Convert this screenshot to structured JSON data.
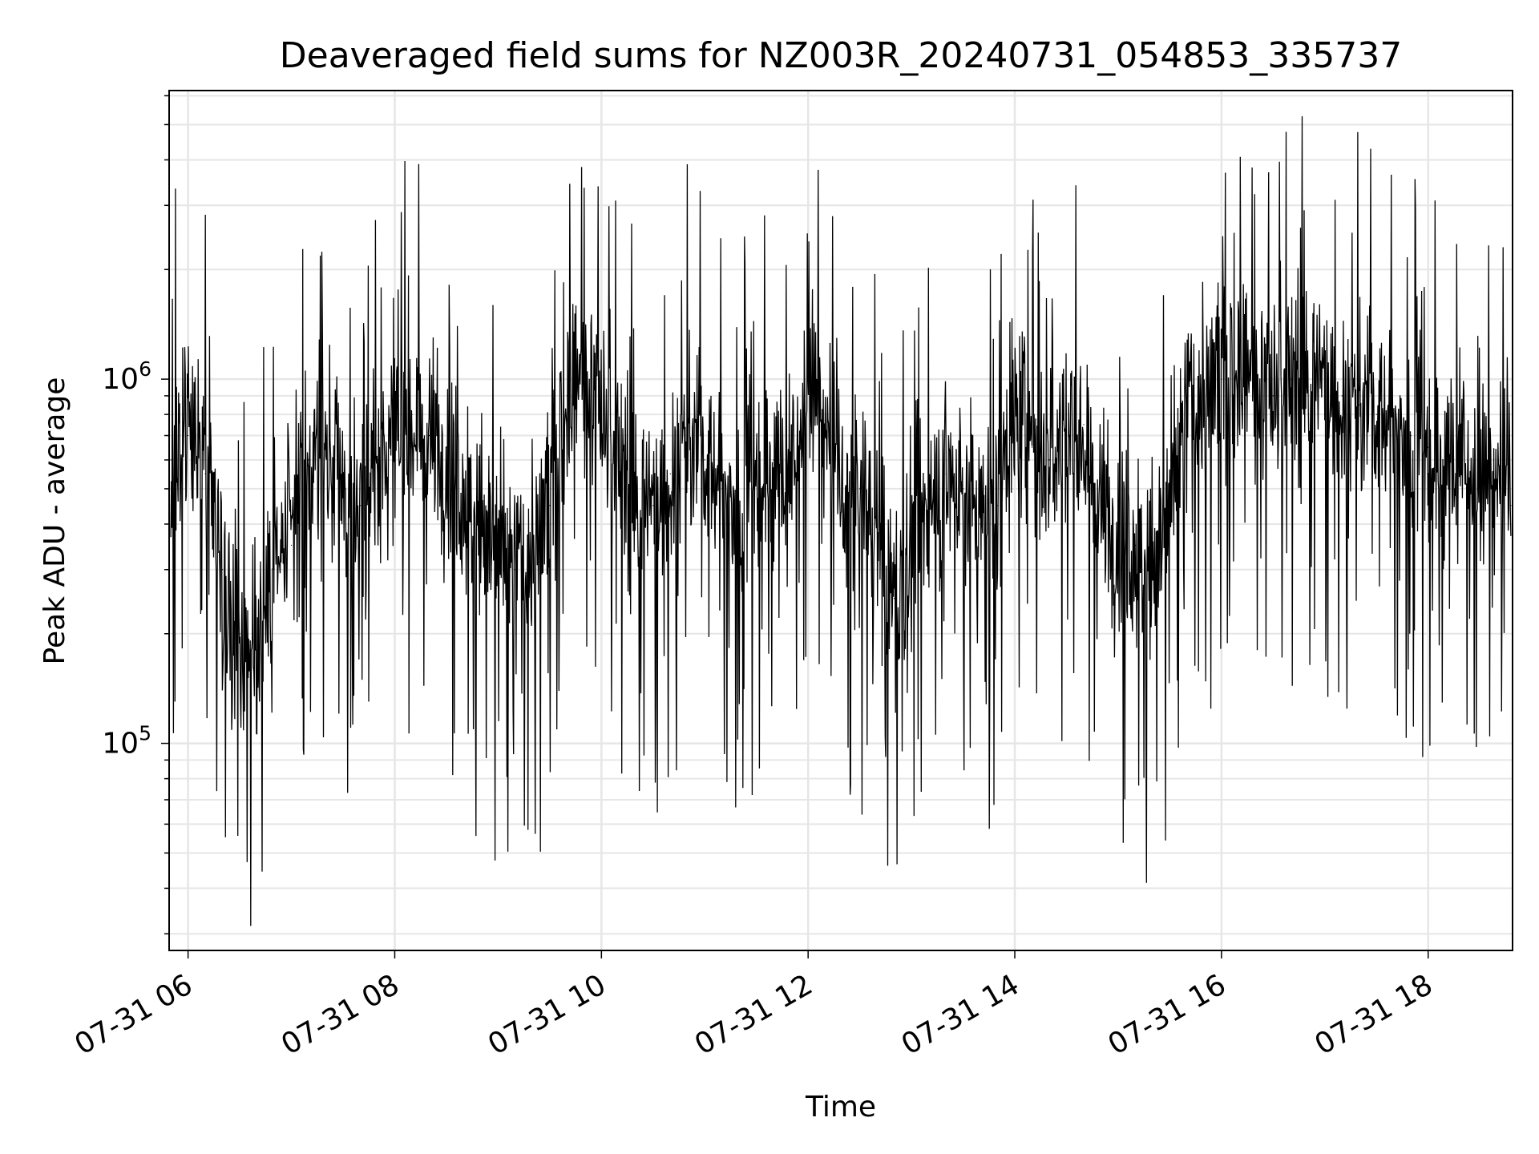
{
  "chart_data": {
    "type": "line",
    "title": "Deaveraged field sums for NZ003R_20240731_054853_335737",
    "xlabel": "Time",
    "ylabel": "Peak ADU - average",
    "y_scale": "log",
    "ylim": [
      27000,
      6200000
    ],
    "xlim": [
      "2024-07-31 05:49",
      "2024-07-31 18:49"
    ],
    "x_ticks": [
      "07-31 06",
      "07-31 08",
      "07-31 10",
      "07-31 12",
      "07-31 14",
      "07-31 16",
      "07-31 18"
    ],
    "y_major_ticks": [
      {
        "base": "10",
        "exp": "5",
        "value": 100000
      },
      {
        "base": "10",
        "exp": "6",
        "value": 1000000
      }
    ],
    "grid": true,
    "line_color": "#000000",
    "series": [
      {
        "x": [
          "05:50",
          "06:00",
          "06:10",
          "06:20",
          "06:30",
          "06:40",
          "06:50",
          "07:00",
          "07:10",
          "07:20",
          "07:30",
          "07:40",
          "07:50",
          "08:00",
          "08:10",
          "08:20",
          "08:30",
          "08:40",
          "08:50",
          "09:00",
          "09:10",
          "09:20",
          "09:30",
          "09:40",
          "09:50",
          "10:00",
          "10:10",
          "10:20",
          "10:30",
          "10:40",
          "10:50",
          "11:00",
          "11:10",
          "11:20",
          "11:30",
          "11:40",
          "11:50",
          "12:00",
          "12:10",
          "12:20",
          "12:30",
          "12:40",
          "12:50",
          "13:00",
          "13:10",
          "13:20",
          "13:30",
          "13:40",
          "13:50",
          "14:00",
          "14:10",
          "14:20",
          "14:30",
          "14:40",
          "14:50",
          "15:00",
          "15:10",
          "15:20",
          "15:30",
          "15:40",
          "15:50",
          "16:00",
          "16:10",
          "16:20",
          "16:30",
          "16:40",
          "16:50",
          "17:00",
          "17:10",
          "17:20",
          "17:30",
          "17:40",
          "17:50",
          "18:00",
          "18:10",
          "18:20",
          "18:30",
          "18:40",
          "18:48"
        ],
        "values": [
          600000,
          700000,
          550000,
          300000,
          200000,
          180000,
          300000,
          350000,
          600000,
          650000,
          500000,
          450000,
          600000,
          700000,
          800000,
          700000,
          650000,
          500000,
          400000,
          350000,
          300000,
          350000,
          450000,
          900000,
          1000000,
          800000,
          600000,
          500000,
          450000,
          550000,
          700000,
          600000,
          500000,
          450000,
          550000,
          600000,
          500000,
          1100000,
          700000,
          450000,
          500000,
          400000,
          250000,
          350000,
          450000,
          550000,
          500000,
          400000,
          450000,
          800000,
          650000,
          600000,
          700000,
          750000,
          450000,
          400000,
          350000,
          300000,
          450000,
          850000,
          950000,
          1000000,
          1100000,
          950000,
          900000,
          1000000,
          1100000,
          1000000,
          900000,
          850000,
          800000,
          750000,
          700000,
          650000,
          600000,
          600000,
          550000,
          500000,
          450000
        ]
      }
    ]
  }
}
